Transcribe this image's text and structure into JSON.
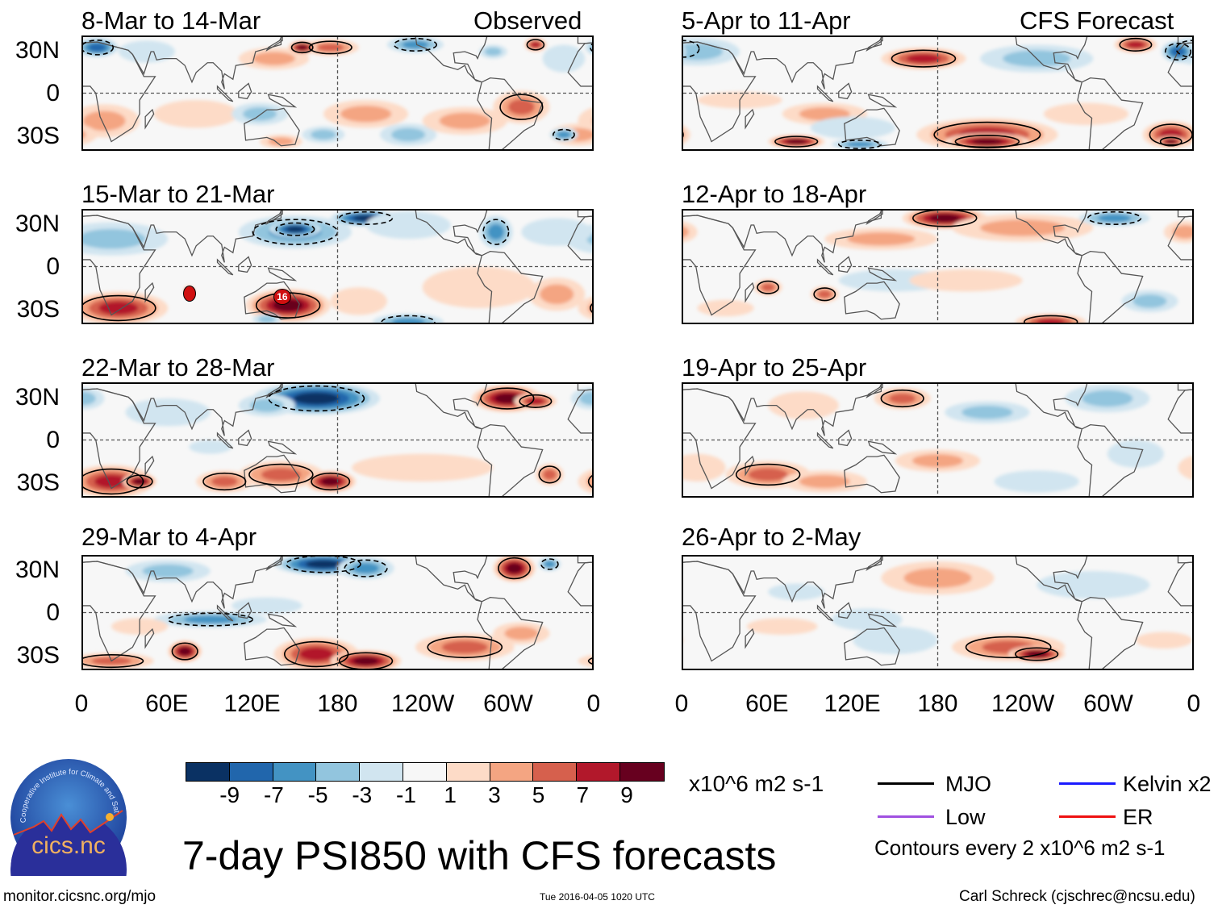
{
  "figure_title": "7-day PSI850 with CFS forecasts",
  "columns": {
    "left_header": "Observed",
    "right_header": "CFS Forecast"
  },
  "panels": [
    {
      "label": "8-Mar to 14-Mar",
      "type": "observed"
    },
    {
      "label": "15-Mar to 21-Mar",
      "type": "observed",
      "storm_marker": "16"
    },
    {
      "label": "22-Mar to 28-Mar",
      "type": "observed"
    },
    {
      "label": "29-Mar to 4-Apr",
      "type": "observed"
    },
    {
      "label": "5-Apr to 11-Apr",
      "type": "forecast"
    },
    {
      "label": "12-Apr to 18-Apr",
      "type": "forecast"
    },
    {
      "label": "19-Apr to 25-Apr",
      "type": "forecast"
    },
    {
      "label": "26-Apr to 2-May",
      "type": "forecast"
    }
  ],
  "lat_labels": [
    "30N",
    "0",
    "30S"
  ],
  "lon_labels": [
    "0",
    "60E",
    "120E",
    "180",
    "120W",
    "60W",
    "0"
  ],
  "colorbar": {
    "colors": [
      "#0a3163",
      "#2166ac",
      "#4393c3",
      "#92c5de",
      "#d1e5f0",
      "#f7f7f7",
      "#fddbc7",
      "#f4a582",
      "#d6604d",
      "#b2182b",
      "#67001f"
    ],
    "ticks": [
      "-9",
      "-7",
      "-5",
      "-3",
      "-1",
      "1",
      "3",
      "5",
      "7",
      "9"
    ],
    "units": "x10^6 m2 s-1"
  },
  "legend": {
    "items": [
      {
        "label": "MJO",
        "color": "#000000"
      },
      {
        "label": "Kelvin x2",
        "color": "#1a1aff"
      },
      {
        "label": "Low",
        "color": "#a050e0"
      },
      {
        "label": "ER",
        "color": "#ee1111"
      }
    ],
    "contour_note": "Contours every 2 x10^6 m2 s-1"
  },
  "logo": {
    "text": "cics.nc",
    "ring_text": "Cooperative Institute for Climate and Satellites"
  },
  "footer": {
    "url": "monitor.cicsnc.org/mjo",
    "timestamp": "Tue 2016-04-05 1020 UTC",
    "author": "Carl Schreck (cjschrec@ncsu.edu)"
  }
}
